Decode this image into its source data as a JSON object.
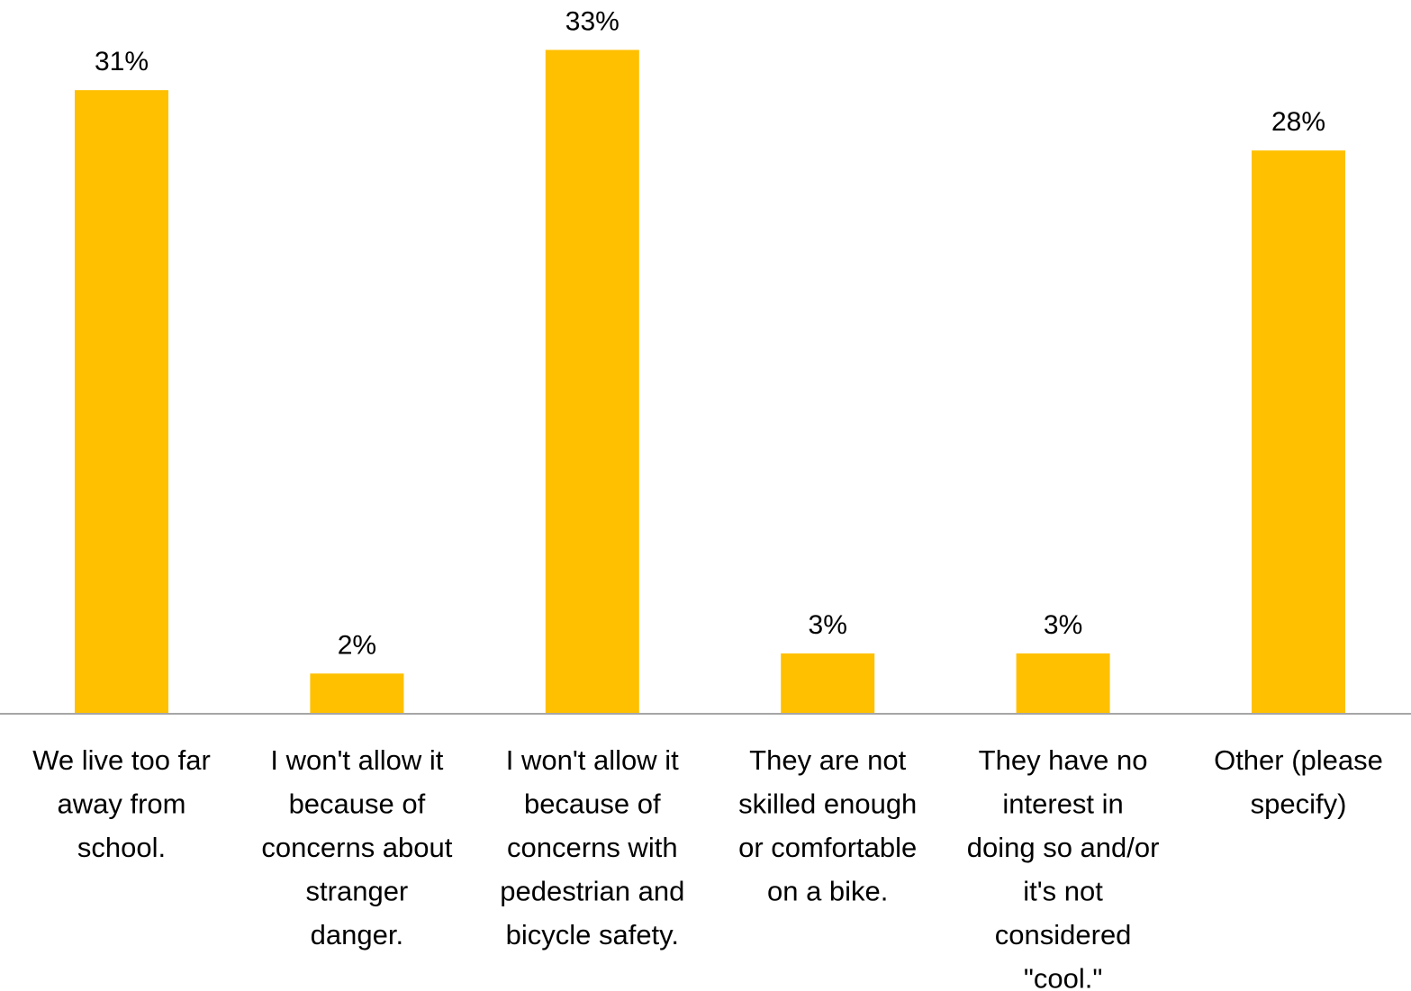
{
  "chart_data": {
    "type": "bar",
    "categories": [
      [
        "We live too far",
        "away from",
        "school."
      ],
      [
        "I won't allow it",
        "because of",
        "concerns about",
        "stranger",
        "danger."
      ],
      [
        "I won't allow it",
        "because of",
        "concerns with",
        "pedestrian and",
        "bicycle safety."
      ],
      [
        "They are not",
        "skilled enough",
        "or comfortable",
        "on a bike."
      ],
      [
        "They have no",
        "interest in",
        "doing so and/or",
        "it's not",
        "considered",
        "\"cool.\""
      ],
      [
        "Other (please",
        "specify)"
      ]
    ],
    "values": [
      31,
      2,
      33,
      3,
      3,
      28
    ],
    "value_labels": [
      "31%",
      "2%",
      "33%",
      "3%",
      "3%",
      "28%"
    ],
    "unit": "%",
    "ylim": [
      0,
      34
    ],
    "colors": {
      "bar": "#FFC000",
      "axis": "#A6A6A6"
    },
    "grid": false,
    "legend": "none"
  }
}
